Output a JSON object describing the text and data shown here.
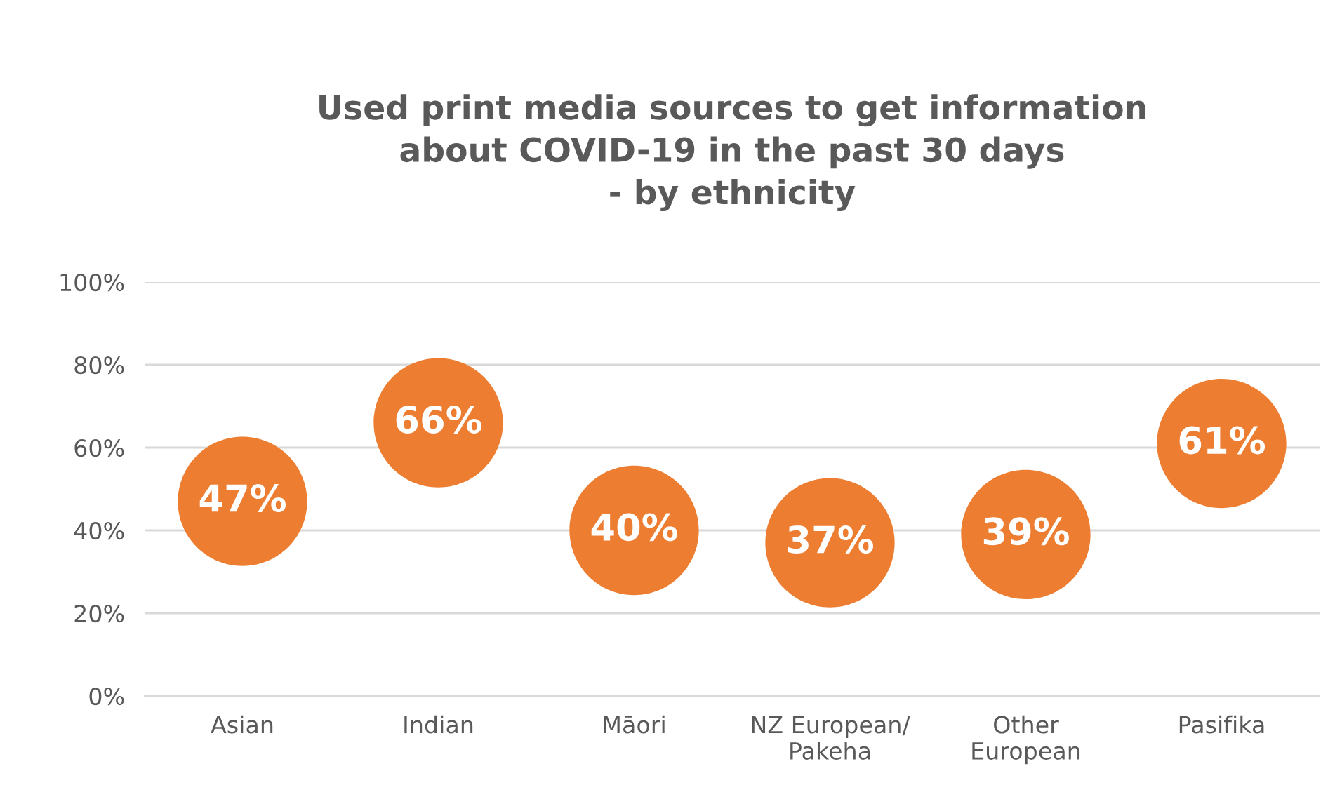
{
  "chart_data": {
    "type": "scatter",
    "title": "Used print media sources to get information\nabout COVID-19 in the past 30 days\n- by ethnicity",
    "categories": [
      "Asian",
      "Indian",
      "Māori",
      "NZ European/\nPakeha",
      "Other\nEuropean",
      "Pasifika"
    ],
    "values": [
      47,
      66,
      40,
      37,
      39,
      61
    ],
    "value_labels": [
      "47%",
      "66%",
      "40%",
      "37%",
      "39%",
      "61%"
    ],
    "color": "#ed7d31",
    "marker": "circle",
    "ylim": [
      0,
      100
    ],
    "yticks": [
      {
        "value": 0,
        "label": "0%"
      },
      {
        "value": 20,
        "label": "20%"
      },
      {
        "value": 40,
        "label": "40%"
      },
      {
        "value": 60,
        "label": "60%"
      },
      {
        "value": 80,
        "label": "80%"
      },
      {
        "value": 100,
        "label": "100%"
      }
    ],
    "grid": "y"
  }
}
